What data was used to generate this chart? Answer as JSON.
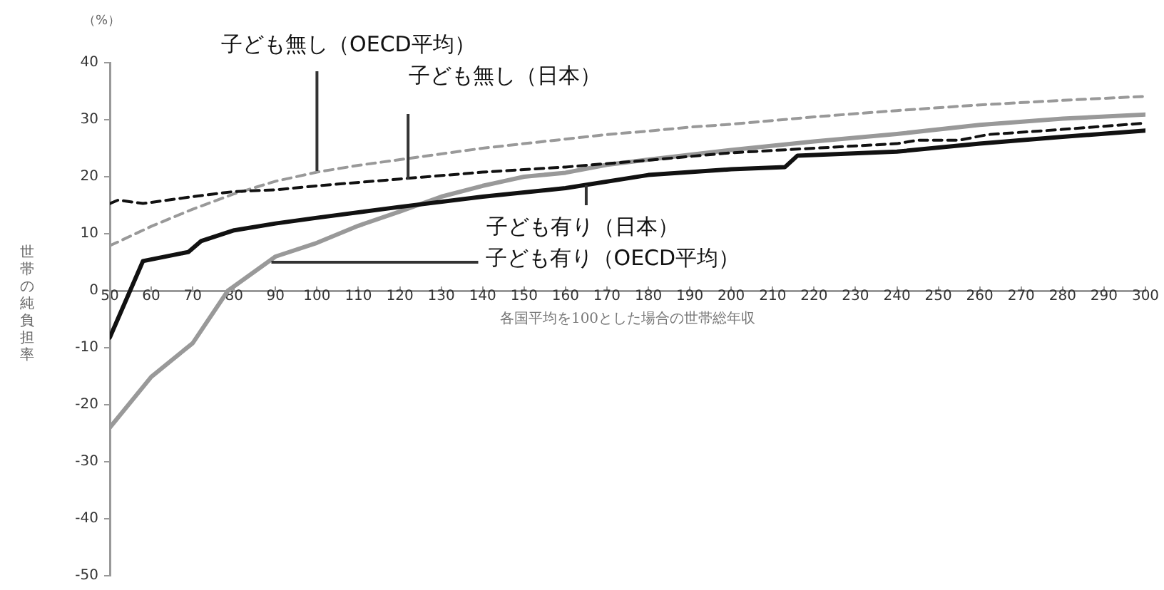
{
  "chart_data": {
    "type": "line",
    "xlabel": "各国平均を100とした場合の世帯総年収",
    "ylabel": "世帯の純負担率",
    "xlim": [
      50,
      300
    ],
    "xticks": [
      50,
      60,
      70,
      80,
      90,
      100,
      110,
      120,
      130,
      140,
      150,
      160,
      170,
      180,
      190,
      200,
      210,
      220,
      230,
      240,
      250,
      260,
      270,
      280,
      290,
      300
    ],
    "ylim": [
      -50,
      40
    ],
    "yticks": [
      -50,
      -40,
      -30,
      -20,
      -10,
      0,
      10,
      20,
      30,
      40
    ],
    "grid": false,
    "legend": false,
    "marker": "none",
    "series": [
      {
        "color": "#111111",
        "line_style": "dashed",
        "x": [
          50,
          52,
          58,
          70,
          80,
          90,
          100,
          120,
          140,
          160,
          180,
          200,
          220,
          240,
          245,
          255,
          262,
          280,
          300
        ],
        "values": [
          15.3,
          15.9,
          15.3,
          16.5,
          17.4,
          17.7,
          18.4,
          19.6,
          20.8,
          21.7,
          22.9,
          24.2,
          25.0,
          25.8,
          26.4,
          26.4,
          27.4,
          28.3,
          29.4
        ]
      },
      {
        "color": "#999999",
        "line_style": "dashed",
        "x": [
          50,
          60,
          70,
          80,
          90,
          100,
          110,
          120,
          130,
          140,
          150,
          160,
          170,
          180,
          190,
          200,
          220,
          240,
          260,
          280,
          300
        ],
        "values": [
          7.9,
          11.3,
          14.3,
          17.0,
          19.2,
          20.8,
          22.0,
          23.0,
          24.0,
          25.0,
          25.8,
          26.6,
          27.4,
          28.0,
          28.7,
          29.2,
          30.5,
          31.6,
          32.6,
          33.4,
          34.1
        ]
      },
      {
        "color": "#111111",
        "line_style": "solid",
        "x": [
          50,
          58,
          69,
          72,
          80,
          90,
          100,
          120,
          140,
          160,
          180,
          190,
          200,
          213,
          216,
          240,
          260,
          280,
          300
        ],
        "values": [
          -8.2,
          5.2,
          6.8,
          8.7,
          10.6,
          11.8,
          12.8,
          14.7,
          16.5,
          18.0,
          20.3,
          20.8,
          21.3,
          21.7,
          23.7,
          24.4,
          25.8,
          27.0,
          28.1
        ]
      },
      {
        "color": "#999999",
        "line_style": "solid",
        "x": [
          50,
          60,
          70,
          78.5,
          90,
          100,
          110,
          120,
          130,
          140,
          150,
          160,
          170,
          180,
          200,
          220,
          240,
          260,
          280,
          300
        ],
        "values": [
          -24.0,
          -15.1,
          -9.2,
          0,
          6.0,
          8.4,
          11.4,
          13.9,
          16.5,
          18.4,
          20.0,
          20.7,
          22.1,
          23.0,
          24.7,
          26.2,
          27.5,
          29.1,
          30.2,
          30.9
        ]
      }
    ],
    "annotations": [
      "（%）",
      {
        "text": "子ども無し（OECD平均）",
        "x": 100,
        "y": 21
      },
      {
        "text": "子ども無し（日本）",
        "x": 122,
        "y": 19.5
      },
      {
        "text": "子ども有り（日本）",
        "x": 165,
        "y": 18.5
      },
      {
        "text": "子ども有り（OECD平均）",
        "x": 89,
        "y": 5
      }
    ]
  }
}
